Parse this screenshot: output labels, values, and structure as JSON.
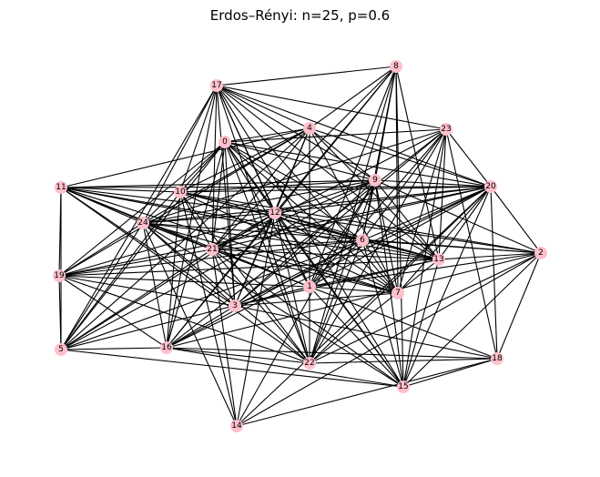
{
  "title": "Erdos–Rényi: n=25, p=0.6",
  "nodes": [
    {
      "label": "0"
    },
    {
      "label": "1"
    },
    {
      "label": "2"
    },
    {
      "label": "3"
    },
    {
      "label": "4"
    },
    {
      "label": "5"
    },
    {
      "label": "6"
    },
    {
      "label": "7"
    },
    {
      "label": "8"
    },
    {
      "label": "9"
    },
    {
      "label": "10"
    },
    {
      "label": "11"
    },
    {
      "label": "12"
    },
    {
      "label": "13"
    },
    {
      "label": "14"
    },
    {
      "label": "15"
    },
    {
      "label": "16"
    },
    {
      "label": "17"
    },
    {
      "label": "18"
    },
    {
      "label": "19"
    },
    {
      "label": "20"
    },
    {
      "label": "21"
    },
    {
      "label": "22"
    },
    {
      "label": "23"
    },
    {
      "label": "24"
    }
  ],
  "edges": [
    [
      0,
      1
    ],
    [
      0,
      3
    ],
    [
      0,
      4
    ],
    [
      0,
      5
    ],
    [
      0,
      6
    ],
    [
      0,
      7
    ],
    [
      0,
      9
    ],
    [
      0,
      10
    ],
    [
      0,
      12
    ],
    [
      0,
      13
    ],
    [
      0,
      15
    ],
    [
      0,
      16
    ],
    [
      0,
      19
    ],
    [
      0,
      20
    ],
    [
      0,
      21
    ],
    [
      0,
      22
    ],
    [
      0,
      23
    ],
    [
      0,
      24
    ],
    [
      1,
      2
    ],
    [
      1,
      3
    ],
    [
      1,
      4
    ],
    [
      1,
      5
    ],
    [
      1,
      6
    ],
    [
      1,
      7
    ],
    [
      1,
      8
    ],
    [
      1,
      9
    ],
    [
      1,
      11
    ],
    [
      1,
      12
    ],
    [
      1,
      13
    ],
    [
      1,
      15
    ],
    [
      1,
      17
    ],
    [
      1,
      19
    ],
    [
      1,
      20
    ],
    [
      1,
      21
    ],
    [
      1,
      22
    ],
    [
      1,
      23
    ],
    [
      1,
      24
    ],
    [
      2,
      6
    ],
    [
      2,
      9
    ],
    [
      2,
      10
    ],
    [
      2,
      12
    ],
    [
      2,
      13
    ],
    [
      2,
      14
    ],
    [
      2,
      15
    ],
    [
      2,
      16
    ],
    [
      2,
      18
    ],
    [
      2,
      20
    ],
    [
      2,
      22
    ],
    [
      2,
      24
    ],
    [
      3,
      4
    ],
    [
      3,
      6
    ],
    [
      3,
      7
    ],
    [
      3,
      9
    ],
    [
      3,
      11
    ],
    [
      3,
      12
    ],
    [
      3,
      13
    ],
    [
      3,
      16
    ],
    [
      3,
      17
    ],
    [
      3,
      18
    ],
    [
      3,
      19
    ],
    [
      3,
      20
    ],
    [
      3,
      21
    ],
    [
      3,
      23
    ],
    [
      3,
      24
    ],
    [
      4,
      5
    ],
    [
      4,
      7
    ],
    [
      4,
      8
    ],
    [
      4,
      9
    ],
    [
      4,
      10
    ],
    [
      4,
      11
    ],
    [
      4,
      12
    ],
    [
      4,
      13
    ],
    [
      4,
      17
    ],
    [
      4,
      19
    ],
    [
      4,
      20
    ],
    [
      4,
      21
    ],
    [
      4,
      24
    ],
    [
      5,
      6
    ],
    [
      5,
      9
    ],
    [
      5,
      10
    ],
    [
      5,
      11
    ],
    [
      5,
      12
    ],
    [
      5,
      15
    ],
    [
      5,
      16
    ],
    [
      5,
      17
    ],
    [
      5,
      19
    ],
    [
      5,
      21
    ],
    [
      5,
      24
    ],
    [
      6,
      7
    ],
    [
      6,
      8
    ],
    [
      6,
      9
    ],
    [
      6,
      10
    ],
    [
      6,
      11
    ],
    [
      6,
      12
    ],
    [
      6,
      13
    ],
    [
      6,
      15
    ],
    [
      6,
      16
    ],
    [
      6,
      19
    ],
    [
      6,
      20
    ],
    [
      6,
      21
    ],
    [
      6,
      22
    ],
    [
      6,
      23
    ],
    [
      7,
      8
    ],
    [
      7,
      9
    ],
    [
      7,
      10
    ],
    [
      7,
      11
    ],
    [
      7,
      12
    ],
    [
      7,
      17
    ],
    [
      7,
      20
    ],
    [
      7,
      21
    ],
    [
      7,
      23
    ],
    [
      7,
      24
    ],
    [
      8,
      9
    ],
    [
      8,
      12
    ],
    [
      8,
      13
    ],
    [
      8,
      15
    ],
    [
      8,
      16
    ],
    [
      8,
      17
    ],
    [
      8,
      21
    ],
    [
      8,
      22
    ],
    [
      9,
      10
    ],
    [
      9,
      11
    ],
    [
      9,
      12
    ],
    [
      9,
      13
    ],
    [
      9,
      14
    ],
    [
      9,
      15
    ],
    [
      9,
      17
    ],
    [
      9,
      20
    ],
    [
      9,
      21
    ],
    [
      9,
      22
    ],
    [
      9,
      24
    ],
    [
      10,
      11
    ],
    [
      10,
      12
    ],
    [
      10,
      13
    ],
    [
      10,
      14
    ],
    [
      10,
      16
    ],
    [
      10,
      17
    ],
    [
      10,
      20
    ],
    [
      10,
      21
    ],
    [
      10,
      22
    ],
    [
      11,
      12
    ],
    [
      11,
      13
    ],
    [
      11,
      19
    ],
    [
      11,
      20
    ],
    [
      11,
      21
    ],
    [
      11,
      22
    ],
    [
      11,
      24
    ],
    [
      12,
      13
    ],
    [
      12,
      14
    ],
    [
      12,
      15
    ],
    [
      12,
      16
    ],
    [
      12,
      17
    ],
    [
      12,
      19
    ],
    [
      12,
      20
    ],
    [
      12,
      21
    ],
    [
      12,
      22
    ],
    [
      12,
      24
    ],
    [
      13,
      15
    ],
    [
      13,
      17
    ],
    [
      13,
      19
    ],
    [
      13,
      20
    ],
    [
      13,
      21
    ],
    [
      13,
      22
    ],
    [
      13,
      23
    ],
    [
      13,
      24
    ],
    [
      14,
      18
    ],
    [
      14,
      20
    ],
    [
      14,
      21
    ],
    [
      14,
      24
    ],
    [
      15,
      16
    ],
    [
      15,
      17
    ],
    [
      15,
      18
    ],
    [
      15,
      20
    ],
    [
      15,
      21
    ],
    [
      15,
      23
    ],
    [
      15,
      24
    ],
    [
      16,
      17
    ],
    [
      16,
      18
    ],
    [
      16,
      19
    ],
    [
      16,
      20
    ],
    [
      16,
      22
    ],
    [
      16,
      23
    ],
    [
      16,
      24
    ],
    [
      17,
      20
    ],
    [
      17,
      21
    ],
    [
      17,
      22
    ],
    [
      17,
      23
    ],
    [
      17,
      24
    ],
    [
      18,
      20
    ],
    [
      18,
      21
    ],
    [
      18,
      22
    ],
    [
      18,
      23
    ],
    [
      19,
      20
    ],
    [
      19,
      21
    ],
    [
      19,
      22
    ],
    [
      19,
      24
    ],
    [
      20,
      21
    ],
    [
      20,
      22
    ],
    [
      20,
      23
    ],
    [
      20,
      24
    ],
    [
      21,
      22
    ],
    [
      21,
      23
    ],
    [
      21,
      24
    ],
    [
      22,
      23
    ],
    [
      22,
      24
    ],
    [
      23,
      24
    ]
  ]
}
